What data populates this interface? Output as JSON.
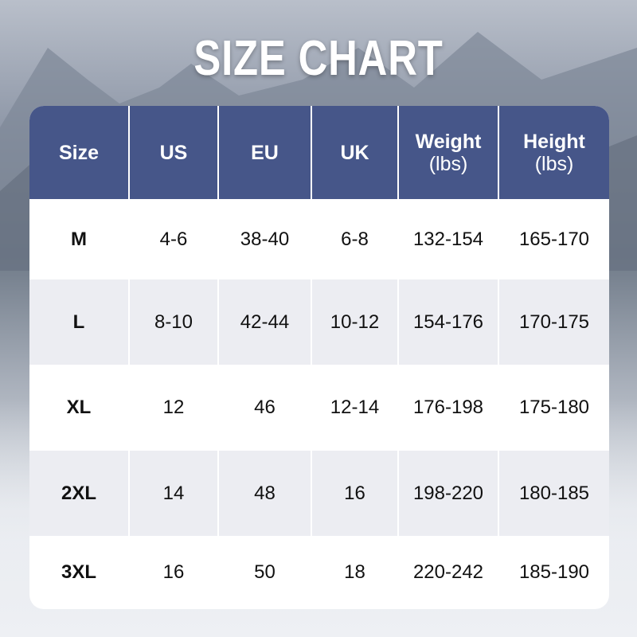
{
  "title": "SIZE CHART",
  "headers": [
    {
      "label": "Size",
      "unit": ""
    },
    {
      "label": "US",
      "unit": ""
    },
    {
      "label": "EU",
      "unit": ""
    },
    {
      "label": "UK",
      "unit": ""
    },
    {
      "label": "Weight",
      "unit": "(lbs)"
    },
    {
      "label": "Height",
      "unit": "(lbs)"
    }
  ],
  "rows": [
    [
      "M",
      "4-6",
      "38-40",
      "6-8",
      "132-154",
      "165-170"
    ],
    [
      "L",
      "8-10",
      "42-44",
      "10-12",
      "154-176",
      "170-175"
    ],
    [
      "XL",
      "12",
      "46",
      "12-14",
      "176-198",
      "175-180"
    ],
    [
      "2XL",
      "14",
      "48",
      "16",
      "198-220",
      "180-185"
    ],
    [
      "3XL",
      "16",
      "50",
      "18",
      "220-242",
      "185-190"
    ]
  ],
  "colors": {
    "header": "#465689",
    "row_alt": "#ecedf2",
    "row": "#ffffff"
  }
}
